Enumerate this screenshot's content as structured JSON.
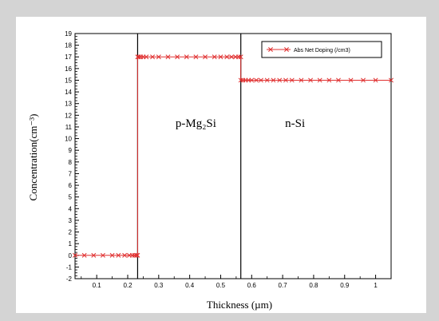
{
  "chart_data": {
    "type": "line",
    "xlabel": "Thickness (µm)",
    "ylabel": "Concentration(cm⁻³)",
    "xlim": [
      0.03,
      1.05
    ],
    "ylim": [
      -2,
      19
    ],
    "xticks": [
      "0.1",
      "0.2",
      "0.3",
      "0.4",
      "0.5",
      "0.6",
      "0.7",
      "0.8",
      "0.9",
      "1"
    ],
    "yticks": [
      "-2",
      "-1",
      "0",
      "1",
      "2",
      "3",
      "4",
      "5",
      "6",
      "7",
      "8",
      "9",
      "10",
      "11",
      "12",
      "13",
      "14",
      "15",
      "16",
      "17",
      "18",
      "19"
    ],
    "grid": false,
    "legend_position": "top-right",
    "series": [
      {
        "name": "Abs Net Doping (/cm3)",
        "color": "#e03030",
        "marker": "x",
        "points": [
          {
            "x": 0.03,
            "y": 0
          },
          {
            "x": 0.06,
            "y": 0
          },
          {
            "x": 0.09,
            "y": 0
          },
          {
            "x": 0.12,
            "y": 0
          },
          {
            "x": 0.15,
            "y": 0
          },
          {
            "x": 0.17,
            "y": 0
          },
          {
            "x": 0.19,
            "y": 0
          },
          {
            "x": 0.205,
            "y": 0
          },
          {
            "x": 0.215,
            "y": 0
          },
          {
            "x": 0.222,
            "y": 0
          },
          {
            "x": 0.228,
            "y": 0
          },
          {
            "x": 0.232,
            "y": 0
          },
          {
            "x": 0.232,
            "y": 17
          },
          {
            "x": 0.236,
            "y": 17
          },
          {
            "x": 0.242,
            "y": 17
          },
          {
            "x": 0.25,
            "y": 17
          },
          {
            "x": 0.26,
            "y": 17
          },
          {
            "x": 0.28,
            "y": 17
          },
          {
            "x": 0.3,
            "y": 17
          },
          {
            "x": 0.33,
            "y": 17
          },
          {
            "x": 0.36,
            "y": 17
          },
          {
            "x": 0.39,
            "y": 17
          },
          {
            "x": 0.42,
            "y": 17
          },
          {
            "x": 0.45,
            "y": 17
          },
          {
            "x": 0.48,
            "y": 17
          },
          {
            "x": 0.5,
            "y": 17
          },
          {
            "x": 0.52,
            "y": 17
          },
          {
            "x": 0.535,
            "y": 17
          },
          {
            "x": 0.548,
            "y": 17
          },
          {
            "x": 0.558,
            "y": 17
          },
          {
            "x": 0.565,
            "y": 17
          },
          {
            "x": 0.565,
            "y": 15
          },
          {
            "x": 0.572,
            "y": 15
          },
          {
            "x": 0.58,
            "y": 15
          },
          {
            "x": 0.59,
            "y": 15
          },
          {
            "x": 0.6,
            "y": 15
          },
          {
            "x": 0.615,
            "y": 15
          },
          {
            "x": 0.63,
            "y": 15
          },
          {
            "x": 0.65,
            "y": 15
          },
          {
            "x": 0.67,
            "y": 15
          },
          {
            "x": 0.69,
            "y": 15
          },
          {
            "x": 0.71,
            "y": 15
          },
          {
            "x": 0.73,
            "y": 15
          },
          {
            "x": 0.76,
            "y": 15
          },
          {
            "x": 0.79,
            "y": 15
          },
          {
            "x": 0.82,
            "y": 15
          },
          {
            "x": 0.85,
            "y": 15
          },
          {
            "x": 0.88,
            "y": 15
          },
          {
            "x": 0.92,
            "y": 15
          },
          {
            "x": 0.96,
            "y": 15
          },
          {
            "x": 1.0,
            "y": 15
          },
          {
            "x": 1.05,
            "y": 15
          }
        ]
      }
    ],
    "boundaries": [
      0.232,
      0.565
    ],
    "annotations": [
      {
        "text": "p-Mg₂Si",
        "x": 0.42,
        "y": 11
      },
      {
        "text": "n-Si",
        "x": 0.74,
        "y": 11
      }
    ]
  }
}
